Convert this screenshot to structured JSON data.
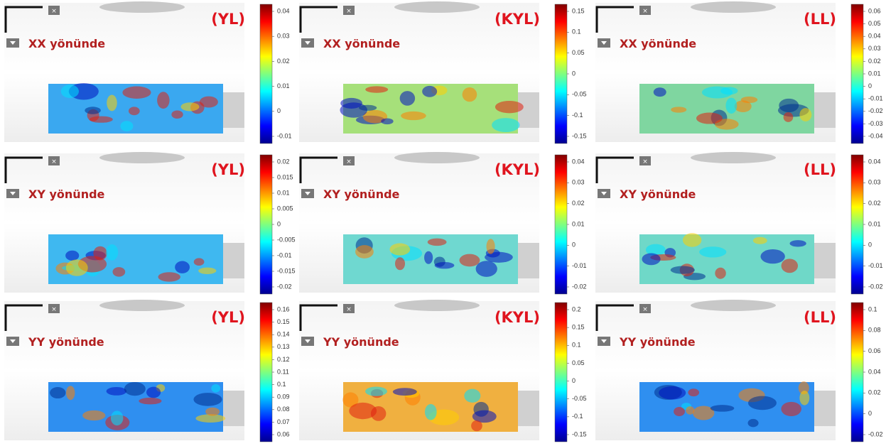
{
  "panels": [
    {
      "tag": "(YL)",
      "direction": "XX yönünde",
      "ticks": [
        0.04,
        0.03,
        0.02,
        0.01,
        0,
        -0.01
      ]
    },
    {
      "tag": "(KYL)",
      "direction": "XX yönünde",
      "ticks": [
        0.15,
        0.1,
        0.05,
        0,
        -0.05,
        -0.1,
        -0.15
      ]
    },
    {
      "tag": "(LL)",
      "direction": "XX yönünde",
      "ticks": [
        0.06,
        0.05,
        0.04,
        0.03,
        0.02,
        0.01,
        0,
        -0.01,
        -0.02,
        -0.03,
        -0.04
      ]
    },
    {
      "tag": "(YL)",
      "direction": "XY yönünde",
      "ticks": [
        0.02,
        0.015,
        0.01,
        0.005,
        0,
        -0.005,
        -0.01,
        -0.015,
        -0.02
      ]
    },
    {
      "tag": "(KYL)",
      "direction": "XY yönünde",
      "ticks": [
        0.04,
        0.03,
        0.02,
        0.01,
        0,
        -0.01,
        -0.02
      ]
    },
    {
      "tag": "(LL)",
      "direction": "XY yönünde",
      "ticks": [
        0.04,
        0.03,
        0.02,
        0.01,
        0,
        -0.01,
        -0.02
      ]
    },
    {
      "tag": "(YL)",
      "direction": "YY yönünde",
      "ticks": [
        0.16,
        0.15,
        0.14,
        0.13,
        0.12,
        0.11,
        0.1,
        0.09,
        0.08,
        0.07,
        0.06
      ]
    },
    {
      "tag": "(KYL)",
      "direction": "YY yönünde",
      "ticks": [
        0.2,
        0.15,
        0.1,
        0.05,
        0,
        -0.05,
        -0.1,
        -0.15
      ]
    },
    {
      "tag": "(LL)",
      "direction": "YY yönünde",
      "ticks": [
        0.1,
        0.08,
        0.06,
        0.04,
        0.02,
        0,
        -0.02
      ]
    }
  ]
}
